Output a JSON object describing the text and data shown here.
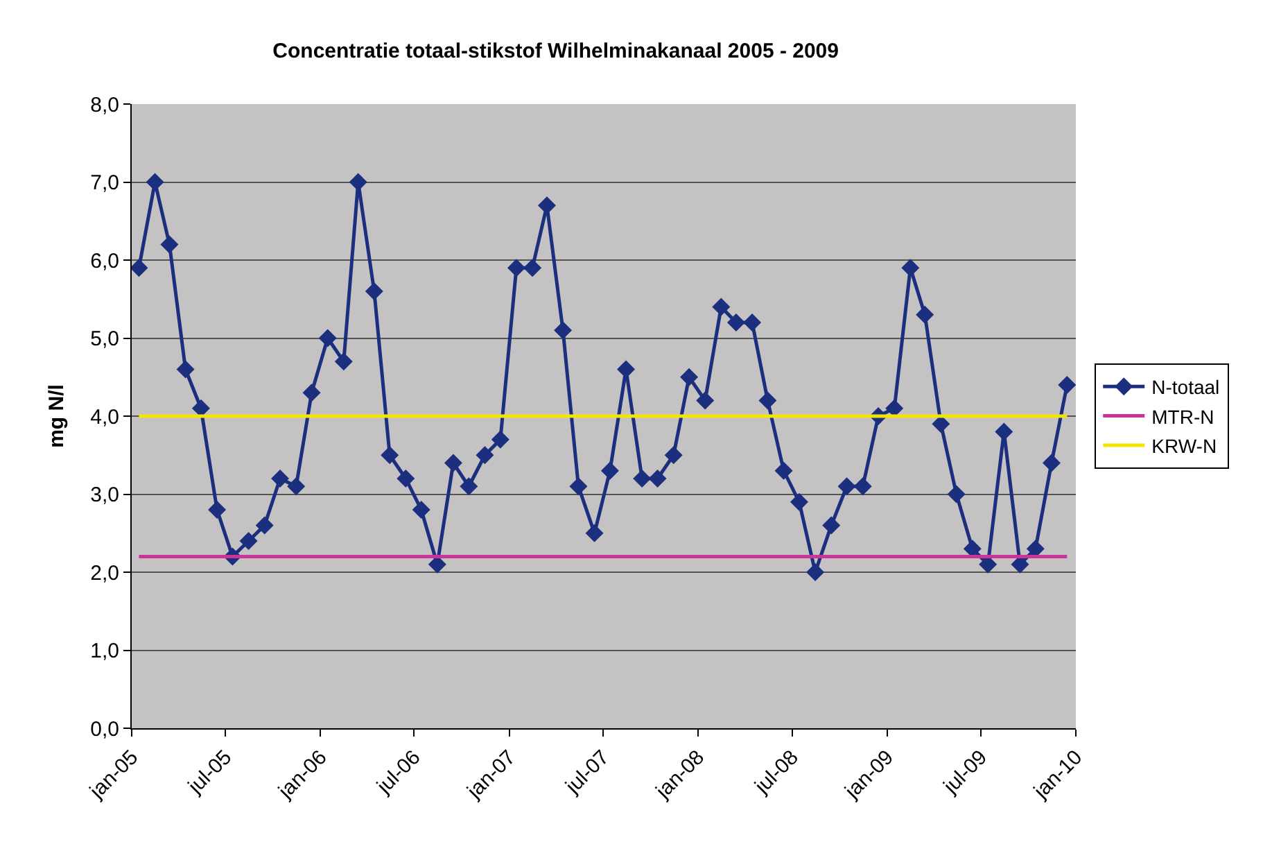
{
  "chart_data": {
    "type": "line",
    "title": "Concentratie totaal-stikstof Wilhelminakanaal 2005 - 2009",
    "ylabel": "mg N/l",
    "x": [
      "2005-01-15",
      "2005-02-15",
      "2005-03-15",
      "2005-04-15",
      "2005-05-15",
      "2005-06-15",
      "2005-07-15",
      "2005-08-15",
      "2005-09-15",
      "2005-10-15",
      "2005-11-15",
      "2005-12-15",
      "2006-01-15",
      "2006-02-15",
      "2006-03-15",
      "2006-04-15",
      "2006-05-15",
      "2006-06-15",
      "2006-07-15",
      "2006-08-15",
      "2006-09-15",
      "2006-10-15",
      "2006-11-15",
      "2006-12-15",
      "2007-01-15",
      "2007-02-15",
      "2007-03-15",
      "2007-04-15",
      "2007-05-15",
      "2007-06-15",
      "2007-07-15",
      "2007-08-15",
      "2007-09-15",
      "2007-10-15",
      "2007-11-15",
      "2007-12-15",
      "2008-01-15",
      "2008-02-15",
      "2008-03-15",
      "2008-04-15",
      "2008-05-15",
      "2008-06-15",
      "2008-07-15",
      "2008-08-15",
      "2008-09-15",
      "2008-10-15",
      "2008-11-15",
      "2008-12-15",
      "2009-01-15",
      "2009-02-15",
      "2009-03-15",
      "2009-04-15",
      "2009-05-15",
      "2009-06-15",
      "2009-07-15",
      "2009-08-15",
      "2009-09-15",
      "2009-10-15",
      "2009-11-15",
      "2009-12-15"
    ],
    "series": [
      {
        "name": "N-totaal",
        "color": "#1c2f7f",
        "marker": "diamond",
        "values": [
          5.9,
          7.0,
          6.2,
          4.6,
          4.1,
          2.8,
          2.2,
          2.4,
          2.6,
          3.2,
          3.1,
          4.3,
          5.0,
          4.7,
          7.0,
          5.6,
          3.5,
          3.2,
          2.8,
          2.1,
          3.4,
          3.1,
          3.5,
          3.7,
          5.9,
          5.9,
          6.7,
          5.1,
          3.1,
          2.5,
          3.3,
          4.6,
          3.2,
          3.2,
          3.5,
          4.5,
          4.2,
          5.4,
          5.2,
          5.2,
          4.2,
          3.3,
          2.9,
          2.0,
          2.6,
          3.1,
          3.1,
          4.0,
          4.1,
          5.9,
          5.3,
          3.9,
          3.0,
          2.3,
          2.1,
          3.8,
          2.1,
          2.3,
          3.4,
          4.4
        ]
      },
      {
        "name": "MTR-N",
        "color": "#cc3399",
        "marker": "none",
        "x": [
          "2005-01-15",
          "2009-12-15"
        ],
        "values": [
          2.2,
          2.2
        ]
      },
      {
        "name": "KRW-N",
        "color": "#f2e600",
        "marker": "none",
        "x": [
          "2005-01-15",
          "2009-12-15"
        ],
        "values": [
          4.0,
          4.0
        ]
      }
    ],
    "xlim": [
      "2005-01-01",
      "2010-01-01"
    ],
    "xticks": [
      {
        "value": "2005-01-01",
        "label": "jan-05"
      },
      {
        "value": "2005-07-01",
        "label": "jul-05"
      },
      {
        "value": "2006-01-01",
        "label": "jan-06"
      },
      {
        "value": "2006-07-01",
        "label": "jul-06"
      },
      {
        "value": "2007-01-01",
        "label": "jan-07"
      },
      {
        "value": "2007-07-01",
        "label": "jul-07"
      },
      {
        "value": "2008-01-01",
        "label": "jan-08"
      },
      {
        "value": "2008-07-01",
        "label": "jul-08"
      },
      {
        "value": "2009-01-01",
        "label": "jan-09"
      },
      {
        "value": "2009-07-01",
        "label": "jul-09"
      },
      {
        "value": "2010-01-01",
        "label": "jan-10"
      }
    ],
    "ylim": [
      0,
      8
    ],
    "yticks": [
      {
        "value": 0,
        "label": "0,0"
      },
      {
        "value": 1,
        "label": "1,0"
      },
      {
        "value": 2,
        "label": "2,0"
      },
      {
        "value": 3,
        "label": "3,0"
      },
      {
        "value": 4,
        "label": "4,0"
      },
      {
        "value": 5,
        "label": "5,0"
      },
      {
        "value": 6,
        "label": "6,0"
      },
      {
        "value": 7,
        "label": "7,0"
      },
      {
        "value": 8,
        "label": "8,0"
      }
    ],
    "grid": "y",
    "legend": "right"
  }
}
